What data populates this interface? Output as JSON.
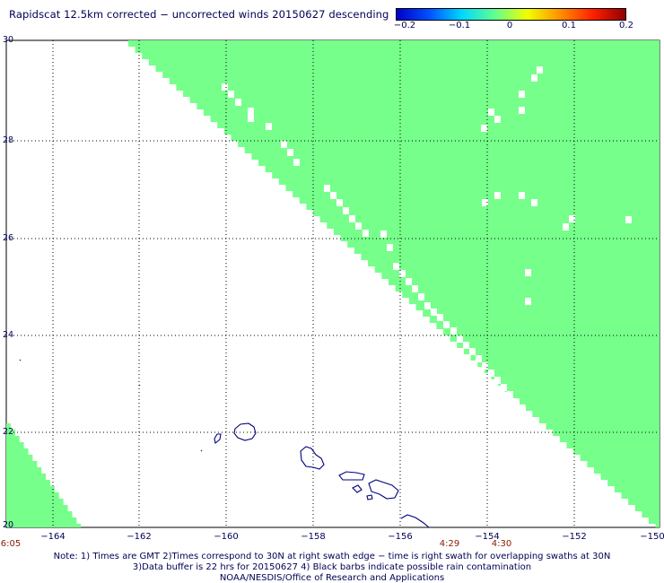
{
  "title": "Rapidscat 12.5km corrected − uncorrected winds 20150627 descending",
  "colorbar": {
    "ticks": [
      "−0.2",
      "−0.1",
      "0",
      "0.1",
      "0.2"
    ],
    "min": -0.2,
    "max": 0.2
  },
  "map": {
    "lat_range": [
      20,
      30
    ],
    "lon_range": [
      -165,
      -150
    ],
    "lat_labels": [
      "30",
      "28",
      "26",
      "24",
      "22",
      "20"
    ],
    "lon_labels": [
      "−164",
      "−162",
      "−160",
      "−158",
      "−156",
      "−154",
      "−152",
      "−150"
    ],
    "swath_color": "#76ff8a",
    "coast_color": "#000080",
    "grid": "dotted"
  },
  "times": {
    "left": "6:05",
    "t1": "4:29",
    "t2": "4:30"
  },
  "notes": {
    "line1": "Note: 1) Times are GMT 2)Times correspond to 30N at right swath edge − time is right swath for overlapping swaths at 30N",
    "line2": "3)Data buffer is 22 hrs for 20150627 4) Black barbs indicate possible rain contamination",
    "line3": "NOAA/NESDIS/Office of Research and Applications"
  }
}
